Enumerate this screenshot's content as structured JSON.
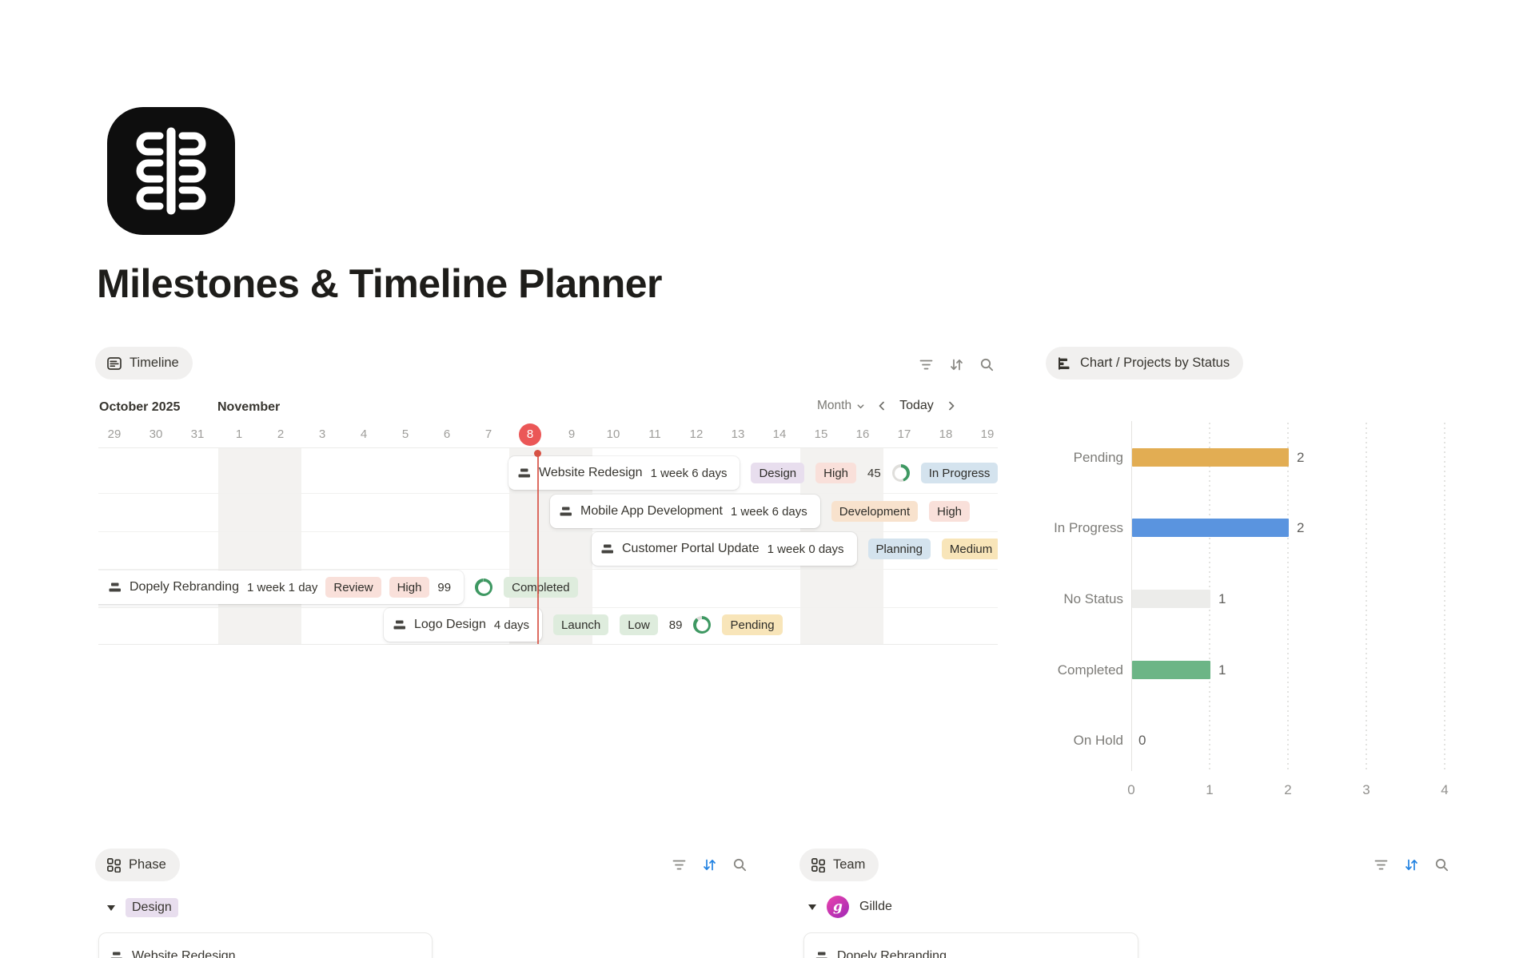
{
  "page": {
    "title": "Milestones & Timeline Planner"
  },
  "timeline": {
    "view_label": "Timeline",
    "months": [
      "October 2025",
      "November"
    ],
    "zoom_label": "Month",
    "today_label": "Today",
    "dates": [
      "29",
      "30",
      "31",
      "1",
      "2",
      "3",
      "4",
      "5",
      "6",
      "7",
      "8",
      "9",
      "10",
      "11",
      "12",
      "13",
      "14",
      "15",
      "16",
      "17",
      "18",
      "19"
    ],
    "today_index": 10,
    "rows": [
      {
        "title": "Website Redesign",
        "duration": "1 week 6 days",
        "progress": 45,
        "tags": [
          {
            "label": "Design",
            "color": "purple"
          },
          {
            "label": "High",
            "color": "red"
          }
        ],
        "status": {
          "label": "In Progress",
          "color": "blue"
        }
      },
      {
        "title": "Mobile App Development",
        "duration": "1 week 6 days",
        "tags": [
          {
            "label": "Development",
            "color": "orange"
          },
          {
            "label": "High",
            "color": "red"
          }
        ]
      },
      {
        "title": "Customer Portal Update",
        "duration": "1 week 0 days",
        "tags": [
          {
            "label": "Planning",
            "color": "blue"
          },
          {
            "label": "Medium",
            "color": "yellow"
          }
        ]
      },
      {
        "title": "Dopely Rebranding",
        "duration": "1 week 1 day",
        "progress": 99,
        "tags": [
          {
            "label": "Review",
            "color": "red"
          },
          {
            "label": "High",
            "color": "red"
          }
        ],
        "status": {
          "label": "Completed",
          "color": "green"
        }
      },
      {
        "title": "Logo Design",
        "duration": "4 days",
        "progress": 89,
        "tags": [
          {
            "label": "Launch",
            "color": "green"
          },
          {
            "label": "Low",
            "color": "green"
          }
        ],
        "status": {
          "label": "Pending",
          "color": "yellow"
        }
      }
    ]
  },
  "chart": {
    "view_label": "Chart / Projects by Status"
  },
  "chart_data": {
    "type": "bar",
    "orientation": "horizontal",
    "title": "Chart / Projects by Status",
    "categories": [
      "Pending",
      "In Progress",
      "No Status",
      "Completed",
      "On Hold"
    ],
    "values": [
      2,
      2,
      1,
      1,
      0
    ],
    "bar_colors": [
      "#E2AD53",
      "#5A94DF",
      "#ECECEA",
      "#6CB586",
      "#ECECEA"
    ],
    "xlabel": "",
    "ylabel": "",
    "xlim": [
      0,
      4
    ],
    "x_ticks": [
      0,
      1,
      2,
      3,
      4
    ],
    "grid": "dotted-vertical gridlines",
    "value_labels": true,
    "legend": "none"
  },
  "phase_section": {
    "view_label": "Phase",
    "group": {
      "label": "Design",
      "color": "purple"
    },
    "cards": [
      {
        "title": "Website Redesign"
      }
    ]
  },
  "team_section": {
    "view_label": "Team",
    "group": {
      "label": "Gillde",
      "avatar_letter": "g"
    },
    "cards": [
      {
        "title": "Dopely Rebranding"
      }
    ]
  },
  "colors": {
    "accent_red_today": "#EB5757",
    "today_line": "#D75245",
    "progress_ring": "#3E9862",
    "tag_purple": "#E8DEEE",
    "tag_red": "#F9E0DA",
    "tag_orange": "#F8E2CD",
    "tag_blue": "#D4E3EE",
    "tag_yellow": "#F8E5B9",
    "tag_green": "#DEECDD",
    "chip_bg": "#F1F0EF",
    "weekend_band": "#F3F2F0",
    "sort_active": "#2383E2"
  },
  "icons": {
    "timeline-view-icon": "rounded square with text lines",
    "chart-view-icon": "horizontal bar chart glyph",
    "board-view-icon": "2x2 grid of squares",
    "gantt-item-icon": "two stacked dark bars (mini gantt)",
    "filter-icon": "three decreasing horizontal lines",
    "sort-icon": "down and up arrows",
    "search-icon": "magnifying glass",
    "chevron-down-icon": "v",
    "chevron-left-icon": "<",
    "chevron-right-icon": ">",
    "collapse-triangle-icon": "filled down triangle",
    "logo": "black rounded square with white symmetric bracket pattern"
  }
}
